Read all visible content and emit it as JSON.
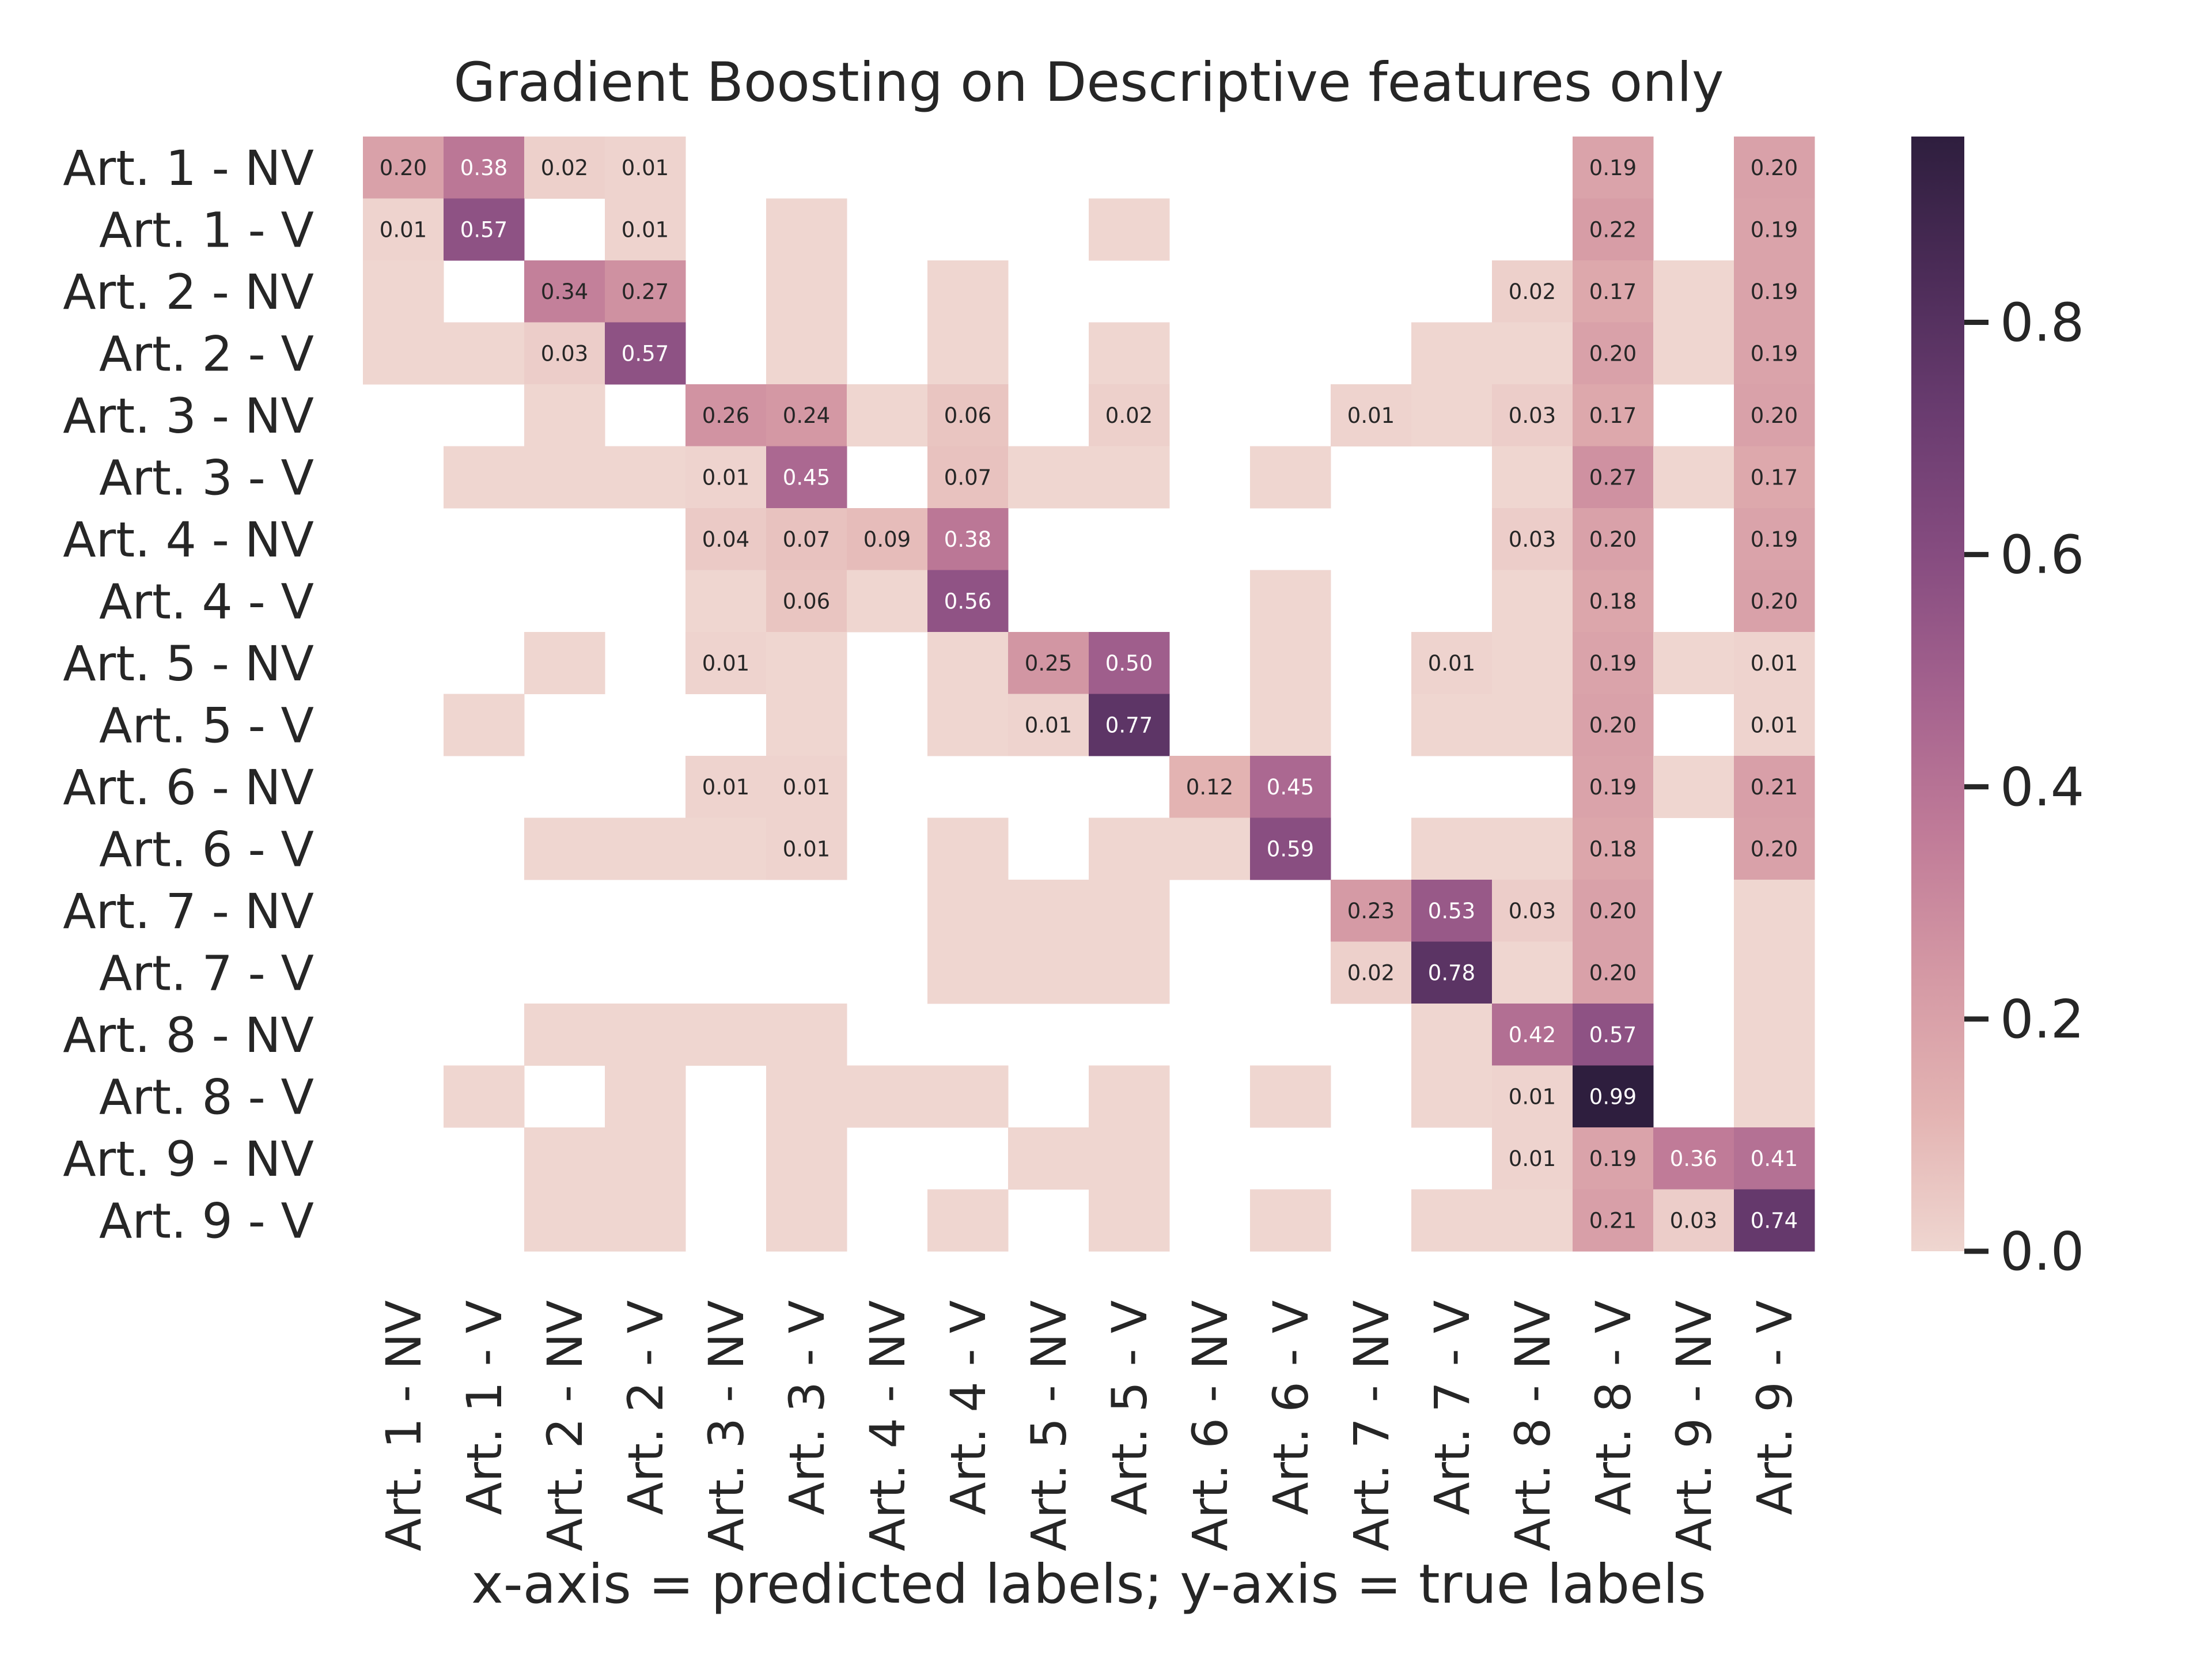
{
  "chart_data": {
    "type": "heatmap",
    "title": "Gradient Boosting on Descriptive features only",
    "xlabel": "x-axis = predicted labels; y-axis = true labels",
    "ylabel": "",
    "rows": [
      "Art. 1 - NV",
      "Art. 1 - V",
      "Art. 2 - NV",
      "Art. 2 - V",
      "Art. 3 - NV",
      "Art. 3 - V",
      "Art. 4 - NV",
      "Art. 4 - V",
      "Art. 5 - NV",
      "Art. 5 - V",
      "Art. 6 - NV",
      "Art. 6 - V",
      "Art. 7 - NV",
      "Art. 7 - V",
      "Art. 8 - NV",
      "Art. 8 - V",
      "Art. 9 - NV",
      "Art. 9 - V"
    ],
    "columns": [
      "Art. 1 - NV",
      "Art. 1 - V",
      "Art. 2 - NV",
      "Art. 2 - V",
      "Art. 3 - NV",
      "Art. 3 - V",
      "Art. 4 - NV",
      "Art. 4 - V",
      "Art. 5 - NV",
      "Art. 5 - V",
      "Art. 6 - NV",
      "Art. 6 - V",
      "Art. 7 - NV",
      "Art. 7 - V",
      "Art. 8 - NV",
      "Art. 8 - V",
      "Art. 9 - NV",
      "Art. 9 - V"
    ],
    "values": [
      [
        0.2,
        0.38,
        0.02,
        0.01,
        null,
        null,
        null,
        null,
        null,
        null,
        null,
        null,
        null,
        null,
        null,
        0.19,
        null,
        0.2
      ],
      [
        0.01,
        0.57,
        null,
        0.01,
        null,
        0,
        null,
        null,
        null,
        0,
        null,
        null,
        null,
        null,
        null,
        0.22,
        null,
        0.19
      ],
      [
        0,
        null,
        0.34,
        0.27,
        null,
        0,
        null,
        0,
        null,
        null,
        null,
        null,
        null,
        null,
        0.02,
        0.17,
        0,
        0.19
      ],
      [
        0,
        0,
        0.03,
        0.57,
        null,
        0,
        null,
        0,
        null,
        0,
        null,
        null,
        null,
        0,
        0,
        0.2,
        0,
        0.19
      ],
      [
        null,
        null,
        0,
        null,
        0.26,
        0.24,
        0,
        0.06,
        null,
        0.02,
        null,
        null,
        0.01,
        0,
        0.03,
        0.17,
        null,
        0.2
      ],
      [
        null,
        0,
        0,
        0,
        0.01,
        0.45,
        null,
        0.07,
        0,
        0,
        null,
        0,
        null,
        null,
        0,
        0.27,
        0,
        0.17
      ],
      [
        null,
        null,
        null,
        null,
        0.04,
        0.07,
        0.09,
        0.38,
        null,
        null,
        null,
        null,
        null,
        null,
        0.03,
        0.2,
        null,
        0.19
      ],
      [
        null,
        null,
        null,
        null,
        0,
        0.06,
        0,
        0.56,
        null,
        null,
        null,
        0,
        null,
        null,
        0,
        0.18,
        null,
        0.2
      ],
      [
        null,
        null,
        0,
        null,
        0.01,
        0,
        null,
        0,
        0.25,
        0.5,
        null,
        0,
        null,
        0.01,
        0,
        0.19,
        0,
        0.01
      ],
      [
        null,
        0,
        null,
        null,
        null,
        0,
        null,
        0,
        0.01,
        0.77,
        null,
        0,
        null,
        0,
        0,
        0.2,
        null,
        0.01
      ],
      [
        null,
        null,
        null,
        null,
        0.01,
        0.01,
        null,
        null,
        null,
        null,
        0.12,
        0.45,
        null,
        null,
        null,
        0.19,
        0,
        0.21
      ],
      [
        null,
        null,
        0,
        0,
        0,
        0.01,
        null,
        0,
        null,
        0,
        0,
        0.59,
        null,
        0,
        0,
        0.18,
        null,
        0.2
      ],
      [
        null,
        null,
        null,
        null,
        null,
        null,
        null,
        0,
        0,
        0,
        null,
        null,
        0.23,
        0.53,
        0.03,
        0.2,
        null,
        0
      ],
      [
        null,
        null,
        null,
        null,
        null,
        null,
        null,
        0,
        0,
        0,
        null,
        null,
        0.02,
        0.78,
        0,
        0.2,
        null,
        0
      ],
      [
        null,
        null,
        0,
        0,
        0,
        0,
        null,
        null,
        null,
        null,
        null,
        null,
        null,
        0,
        0.42,
        0.57,
        null,
        0
      ],
      [
        null,
        0,
        null,
        0,
        null,
        0,
        0,
        0,
        null,
        0,
        null,
        0,
        null,
        0,
        0.01,
        0.99,
        null,
        0
      ],
      [
        null,
        null,
        0,
        0,
        null,
        0,
        null,
        null,
        0,
        0,
        null,
        null,
        null,
        null,
        0.01,
        0.19,
        0.36,
        0.41
      ],
      [
        null,
        null,
        0,
        0,
        null,
        0,
        null,
        0,
        null,
        0,
        null,
        0,
        null,
        0,
        0,
        0.21,
        0.03,
        0.74
      ]
    ],
    "colorbar": {
      "range": [
        0,
        0.96
      ],
      "ticks": [
        0.0,
        0.2,
        0.4,
        0.6,
        0.8
      ],
      "tick_labels": [
        "0.0",
        "0.2",
        "0.4",
        "0.6",
        "0.8"
      ]
    },
    "colormap": [
      "#efd6d0",
      "#e3b3b2",
      "#d498a4",
      "#c07b98",
      "#a4628e",
      "#864c80",
      "#6a3c70",
      "#4c2c58",
      "#2e1e3e"
    ],
    "grid": false,
    "legend": "colorbar-right"
  }
}
